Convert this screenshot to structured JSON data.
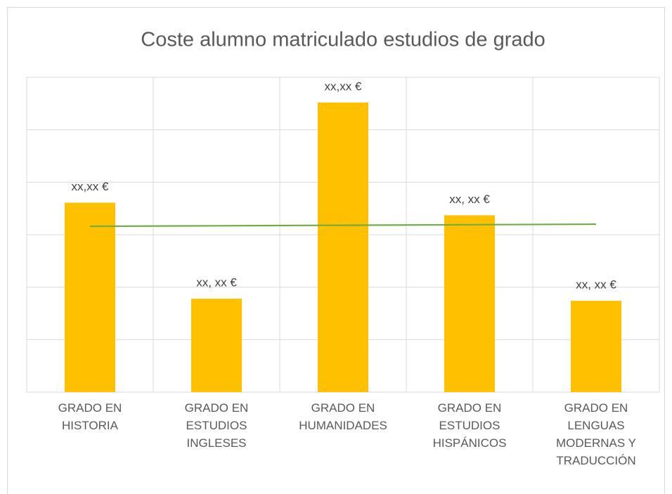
{
  "chart_data": {
    "type": "bar",
    "title": "Coste alumno matriculado estudios de grado",
    "categories": [
      "GRADO EN HISTORIA",
      "GRADO EN ESTUDIOS INGLESES",
      "GRADO EN HUMANIDADES",
      "GRADO EN ESTUDIOS HISPÁNICOS",
      "GRADO EN LENGUAS MODERNAS Y TRADUCCIÓN"
    ],
    "series": [
      {
        "type": "bar",
        "color": "#ffc000",
        "values": [
          3.61,
          1.78,
          5.52,
          3.37,
          1.74
        ],
        "value_labels": [
          "xx,xx €",
          "xx, xx €",
          "xx,xx €",
          "xx, xx €",
          "xx, xx €"
        ]
      },
      {
        "type": "line",
        "color": "#70ad47",
        "values": [
          3.16,
          3.17,
          3.18,
          3.19,
          3.2
        ]
      }
    ],
    "ylim": [
      0,
      6
    ],
    "yticks": [
      0,
      1,
      2,
      3,
      4,
      5,
      6
    ],
    "grid": true
  }
}
